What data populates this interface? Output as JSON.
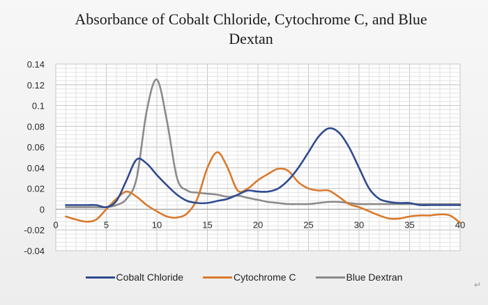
{
  "chart_data": {
    "type": "line",
    "title": "Absorbance of Cobalt Chloride, Cytochrome C, and Blue Dextan",
    "xlabel": "",
    "ylabel": "",
    "xlim": [
      0,
      40
    ],
    "ylim": [
      -0.04,
      0.14
    ],
    "y_ticks": [
      "0.14",
      "0.12",
      "0.1",
      "0.08",
      "0.06",
      "0.04",
      "0.02",
      "0",
      "-0.02",
      "-0.04"
    ],
    "x_ticks": [
      "0",
      "5",
      "10",
      "15",
      "20",
      "25",
      "30",
      "35",
      "40"
    ],
    "grid": true,
    "legend_position": "bottom",
    "series": [
      {
        "name": "Cobalt Chloride",
        "color": "#2e4a8f",
        "x": [
          1,
          2,
          3,
          4,
          5,
          6,
          7,
          8,
          9,
          10,
          11,
          12,
          13,
          14,
          15,
          16,
          17,
          18,
          19,
          20,
          21,
          22,
          23,
          24,
          25,
          26,
          27,
          28,
          29,
          30,
          31,
          32,
          33,
          34,
          35,
          36,
          37,
          38,
          39,
          40
        ],
        "y": [
          0.004,
          0.004,
          0.004,
          0.004,
          0.002,
          0.008,
          0.028,
          0.048,
          0.044,
          0.033,
          0.023,
          0.014,
          0.008,
          0.006,
          0.006,
          0.008,
          0.01,
          0.014,
          0.018,
          0.017,
          0.017,
          0.02,
          0.028,
          0.04,
          0.055,
          0.07,
          0.078,
          0.074,
          0.06,
          0.04,
          0.02,
          0.01,
          0.007,
          0.006,
          0.006,
          0.004,
          0.004,
          0.004,
          0.004,
          0.004
        ]
      },
      {
        "name": "Cytochrome C",
        "color": "#d9792a",
        "x": [
          1,
          2,
          3,
          4,
          5,
          6,
          7,
          8,
          9,
          10,
          11,
          12,
          13,
          14,
          15,
          16,
          17,
          18,
          19,
          20,
          21,
          22,
          23,
          24,
          25,
          26,
          27,
          28,
          29,
          30,
          31,
          32,
          33,
          34,
          35,
          36,
          37,
          38,
          39,
          40
        ],
        "y": [
          -0.007,
          -0.01,
          -0.012,
          -0.01,
          0.0,
          0.01,
          0.017,
          0.012,
          0.004,
          -0.002,
          -0.007,
          -0.008,
          -0.004,
          0.01,
          0.04,
          0.055,
          0.04,
          0.018,
          0.02,
          0.028,
          0.034,
          0.039,
          0.037,
          0.026,
          0.02,
          0.018,
          0.018,
          0.012,
          0.005,
          0.002,
          -0.002,
          -0.006,
          -0.009,
          -0.009,
          -0.007,
          -0.006,
          -0.006,
          -0.005,
          -0.006,
          -0.013
        ]
      },
      {
        "name": "Blue Dextran",
        "color": "#8a8a8a",
        "x": [
          1,
          2,
          3,
          4,
          5,
          6,
          7,
          8,
          9,
          10,
          11,
          12,
          13,
          14,
          15,
          16,
          17,
          18,
          19,
          20,
          21,
          22,
          23,
          24,
          25,
          26,
          27,
          28,
          29,
          30,
          31,
          32,
          33,
          34,
          35,
          36,
          37,
          38,
          39,
          40
        ],
        "y": [
          0.002,
          0.002,
          0.002,
          0.002,
          0.002,
          0.004,
          0.01,
          0.03,
          0.095,
          0.125,
          0.085,
          0.03,
          0.018,
          0.016,
          0.015,
          0.014,
          0.012,
          0.013,
          0.011,
          0.009,
          0.007,
          0.006,
          0.005,
          0.005,
          0.005,
          0.006,
          0.007,
          0.007,
          0.006,
          0.005,
          0.005,
          0.005,
          0.005,
          0.005,
          0.005,
          0.005,
          0.005,
          0.005,
          0.005,
          0.005
        ]
      }
    ]
  }
}
